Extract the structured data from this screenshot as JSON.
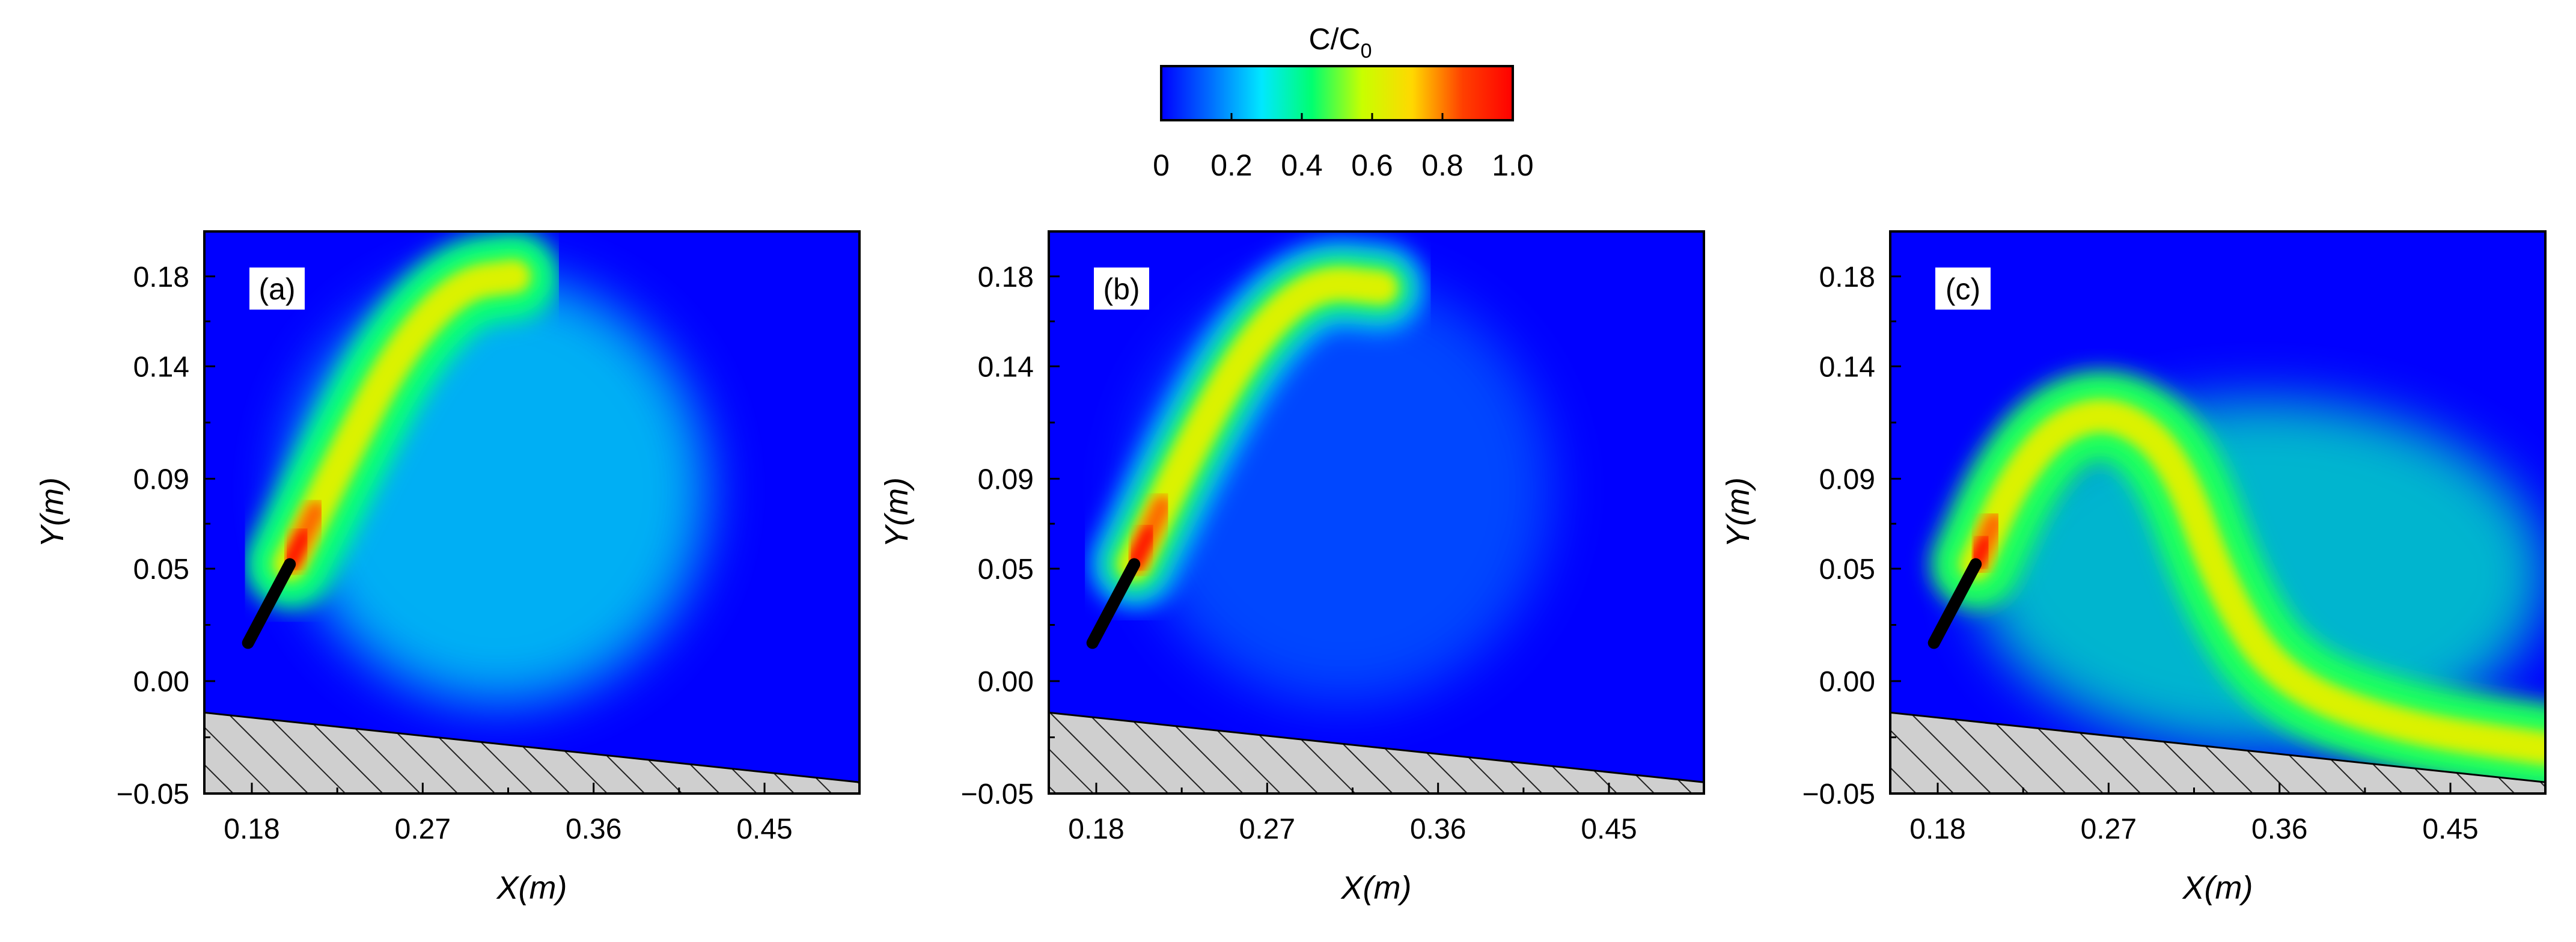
{
  "colorbar": {
    "title_main": "C/C",
    "title_sub": "0",
    "ticks": [
      "0",
      "0.2",
      "0.4",
      "0.6",
      "0.8",
      "1.0"
    ],
    "tick_values": [
      0,
      0.2,
      0.4,
      0.6,
      0.8,
      1.0
    ],
    "stops": [
      "#0000ff",
      "#0070ff",
      "#00e8ff",
      "#00ff70",
      "#c8ff00",
      "#ffd800",
      "#ff4000",
      "#ff0000"
    ]
  },
  "chart_data": [
    {
      "type": "heatmap",
      "panel_label": "(a)",
      "xlabel": "X(m)",
      "ylabel": "Y(m)",
      "xlim": [
        0.155,
        0.5
      ],
      "ylim": [
        -0.05,
        0.2
      ],
      "xticks": [
        "0.18",
        "0.27",
        "0.36",
        "0.45"
      ],
      "xtick_values": [
        0.18,
        0.27,
        0.36,
        0.45
      ],
      "yticks": [
        "0.18",
        "0.14",
        "0.09",
        "0.05",
        "0.00",
        "−0.05"
      ],
      "ytick_values": [
        0.18,
        0.14,
        0.09,
        0.05,
        0.0,
        -0.05
      ],
      "background_value": 0.0,
      "nozzle": {
        "x0": 0.178,
        "y0": 0.017,
        "x1": 0.2,
        "y1": 0.052
      },
      "jet_path": [
        [
          0.2,
          0.052
        ],
        [
          0.228,
          0.1
        ],
        [
          0.258,
          0.148
        ],
        [
          0.29,
          0.177
        ],
        [
          0.318,
          0.18
        ]
      ],
      "jet_peak_value": 1.0,
      "plume_extent": {
        "x_min": 0.2,
        "x_max": 0.42,
        "y_min": -0.01,
        "y_max": 0.18
      },
      "plume_value": 0.3,
      "bed": {
        "x0": 0.155,
        "y0": -0.014,
        "x1": 0.5,
        "y1": -0.045
      }
    },
    {
      "type": "heatmap",
      "panel_label": "(b)",
      "xlabel": "X(m)",
      "ylabel": "Y(m)",
      "xlim": [
        0.155,
        0.5
      ],
      "ylim": [
        -0.05,
        0.2
      ],
      "xticks": [
        "0.18",
        "0.27",
        "0.36",
        "0.45"
      ],
      "xtick_values": [
        0.18,
        0.27,
        0.36,
        0.45
      ],
      "yticks": [
        "0.18",
        "0.14",
        "0.09",
        "0.05",
        "0.00",
        "−0.05"
      ],
      "ytick_values": [
        0.18,
        0.14,
        0.09,
        0.05,
        0.0,
        -0.05
      ],
      "background_value": 0.0,
      "nozzle": {
        "x0": 0.178,
        "y0": 0.017,
        "x1": 0.2,
        "y1": 0.052
      },
      "jet_path": [
        [
          0.2,
          0.052
        ],
        [
          0.23,
          0.105
        ],
        [
          0.262,
          0.152
        ],
        [
          0.295,
          0.178
        ],
        [
          0.33,
          0.175
        ]
      ],
      "jet_peak_value": 1.0,
      "plume_extent": {
        "x_min": 0.2,
        "x_max": 0.42,
        "y_min": -0.01,
        "y_max": 0.18
      },
      "plume_value": 0.12,
      "bed": {
        "x0": 0.155,
        "y0": -0.014,
        "x1": 0.5,
        "y1": -0.045
      }
    },
    {
      "type": "heatmap",
      "panel_label": "(c)",
      "xlabel": "X(m)",
      "ylabel": "Y(m)",
      "xlim": [
        0.155,
        0.5
      ],
      "ylim": [
        -0.05,
        0.2
      ],
      "xticks": [
        "0.18",
        "0.27",
        "0.36",
        "0.45"
      ],
      "xtick_values": [
        0.18,
        0.27,
        0.36,
        0.45
      ],
      "yticks": [
        "0.18",
        "0.14",
        "0.09",
        "0.05",
        "0.00",
        "−0.05"
      ],
      "ytick_values": [
        0.18,
        0.14,
        0.09,
        0.05,
        0.0,
        -0.05
      ],
      "background_value": 0.0,
      "nozzle": {
        "x0": 0.178,
        "y0": 0.017,
        "x1": 0.2,
        "y1": 0.052
      },
      "jet_path": [
        [
          0.2,
          0.052
        ],
        [
          0.22,
          0.09
        ],
        [
          0.245,
          0.115
        ],
        [
          0.275,
          0.12
        ],
        [
          0.305,
          0.1
        ],
        [
          0.33,
          0.04
        ],
        [
          0.36,
          0.0
        ],
        [
          0.42,
          -0.02
        ],
        [
          0.5,
          -0.03
        ]
      ],
      "jet_peak_value": 1.0,
      "plume_extent": {
        "x_min": 0.2,
        "x_max": 0.5,
        "y_min": -0.03,
        "y_max": 0.125
      },
      "plume_value": 0.35,
      "bed": {
        "x0": 0.155,
        "y0": -0.014,
        "x1": 0.5,
        "y1": -0.045
      }
    }
  ]
}
